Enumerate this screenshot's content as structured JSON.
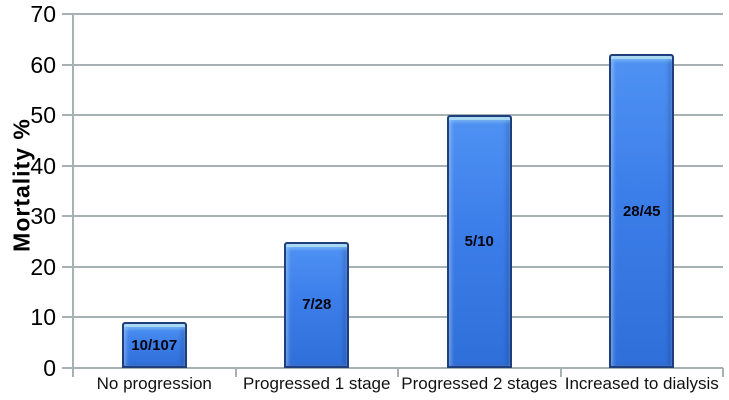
{
  "colors": {
    "grid": "#a7b1b3",
    "bar_border": "#1f3e7c",
    "bar_fill_top": "#4f92f3",
    "bar_fill_mid": "#3c7ee9",
    "bar_fill_bottom": "#2f6fd9",
    "bar_highlight": "#a9d8f2",
    "text": "#000000"
  },
  "chart_data": {
    "type": "bar",
    "title": "",
    "xlabel": "",
    "ylabel": "Mortality %",
    "categories": [
      "No progression",
      "Progressed 1 stage",
      "Progressed 2 stages",
      "Increased to dialysis"
    ],
    "series": [
      {
        "name": "Mortality %",
        "values": [
          9,
          25,
          50,
          62
        ]
      }
    ],
    "bar_value_labels": [
      "10/107",
      "7/28",
      "5/10",
      "28/45"
    ],
    "ylim": [
      0,
      70
    ],
    "yticks": [
      0,
      10,
      20,
      30,
      40,
      50,
      60,
      70
    ],
    "grid": "horizontal",
    "legend_position": "none",
    "bar_label_position": "inside-center"
  }
}
